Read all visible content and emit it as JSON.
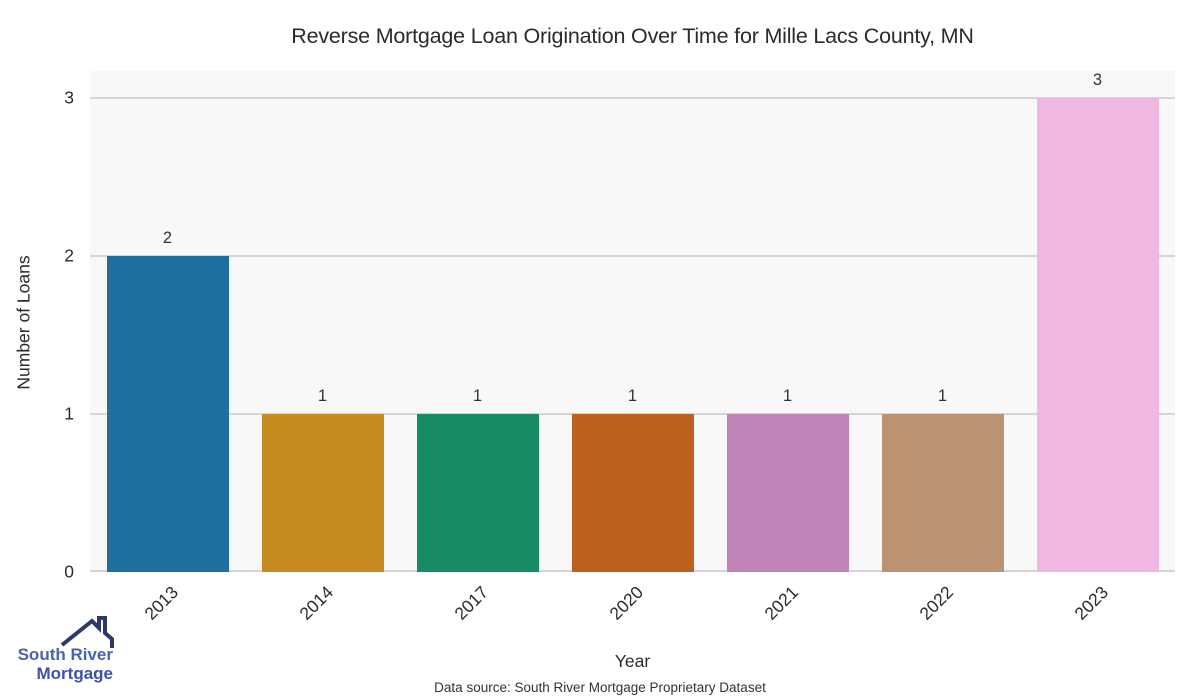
{
  "chart_data": {
    "type": "bar",
    "title": "Reverse Mortgage Loan Origination Over Time for Mille Lacs County, MN",
    "categories": [
      "2013",
      "2014",
      "2017",
      "2020",
      "2021",
      "2022",
      "2023"
    ],
    "values": [
      2,
      1,
      1,
      1,
      1,
      1,
      3
    ],
    "bar_colors": [
      "#1e6fa0",
      "#c68a20",
      "#178a66",
      "#bc611d",
      "#c184b8",
      "#bc9270",
      "#f0b7e0"
    ],
    "xlabel": "Year",
    "ylabel": "Number of Loans",
    "yticks": [
      0,
      1,
      2,
      3
    ],
    "ylim": [
      0,
      3.17
    ],
    "grid": "horizontal",
    "legend": "none",
    "plot_bg_color": "#f8f8f8",
    "grid_color": "#d5d5d5"
  },
  "footer": {
    "source_note": "Data source: South River Mortgage Proprietary Dataset"
  },
  "logo": {
    "name": "South River Mortgage",
    "line1": "South River",
    "line2": "Mortgage",
    "text_color_line1": "#4a63ae",
    "text_color_line2": "#3d52a5",
    "roof_color": "#2c3968"
  }
}
